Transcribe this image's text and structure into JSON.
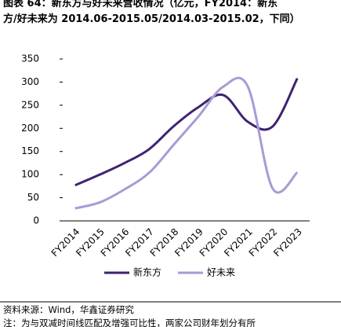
{
  "chart_data": {
    "type": "line",
    "title": [
      "图表 64：新东方与好未来营收情况（亿元，FY2014：新东",
      "方/好未来为 2014.06-2015.05/2014.03-2015.02，下同）"
    ],
    "categories": [
      "FY2014",
      "FY2015",
      "FY2016",
      "FY2017",
      "FY2018",
      "FY2019",
      "FY2020",
      "FY2021",
      "FY2022",
      "FY2023"
    ],
    "series": [
      {
        "name": "新东方",
        "color": "#3f2372",
        "values": [
          77,
          100,
          125,
          155,
          205,
          246,
          272,
          214,
          204,
          308
        ]
      },
      {
        "name": "好未来",
        "color": "#a89bd6",
        "values": [
          27,
          40,
          68,
          104,
          165,
          226,
          290,
          290,
          70,
          105
        ]
      }
    ],
    "ylim": [
      0,
      350
    ],
    "yticks": [
      0,
      50,
      100,
      150,
      200,
      250,
      300,
      350
    ],
    "legend": "bottom",
    "smooth": true,
    "source": "资料来源：Wind，华鑫证券研究",
    "note": "注：为与双减时间线匹配及增强可比性，两家公司财年划分有所"
  }
}
